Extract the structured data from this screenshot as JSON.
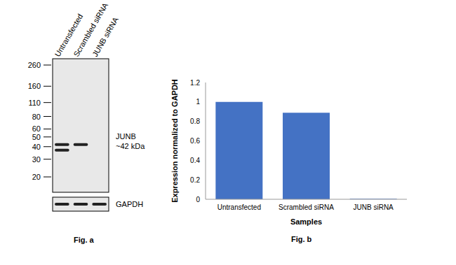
{
  "western_blot": {
    "lanes": [
      "Untransfected",
      "Scrambled siRNA",
      "JUNB siRNA"
    ],
    "markers_kda": [
      260,
      160,
      110,
      80,
      60,
      50,
      40,
      30,
      20
    ],
    "target_label": "JUNB",
    "target_size": "~42 kDa",
    "loading_control": "GAPDH",
    "bands": [
      {
        "lane": "Untransfected",
        "kda": 42
      },
      {
        "lane": "Untransfected",
        "kda": 37
      },
      {
        "lane": "Scrambled siRNA",
        "kda": 42
      }
    ],
    "caption": "Fig. a"
  },
  "chart_data": {
    "type": "bar",
    "categories": [
      "Untransfected",
      "Scrambled siRNA",
      "JUNB siRNA"
    ],
    "values": [
      1,
      0.89,
      0.005
    ],
    "color": "#4472c4",
    "ylim": [
      0,
      1.2
    ],
    "yticks": [
      0,
      0.2,
      0.4,
      0.6,
      0.8,
      1,
      1.2
    ],
    "x_label": "Samples",
    "y_label": "Expression normalized to GAPDH",
    "grid": false,
    "caption": "Fig. b"
  }
}
